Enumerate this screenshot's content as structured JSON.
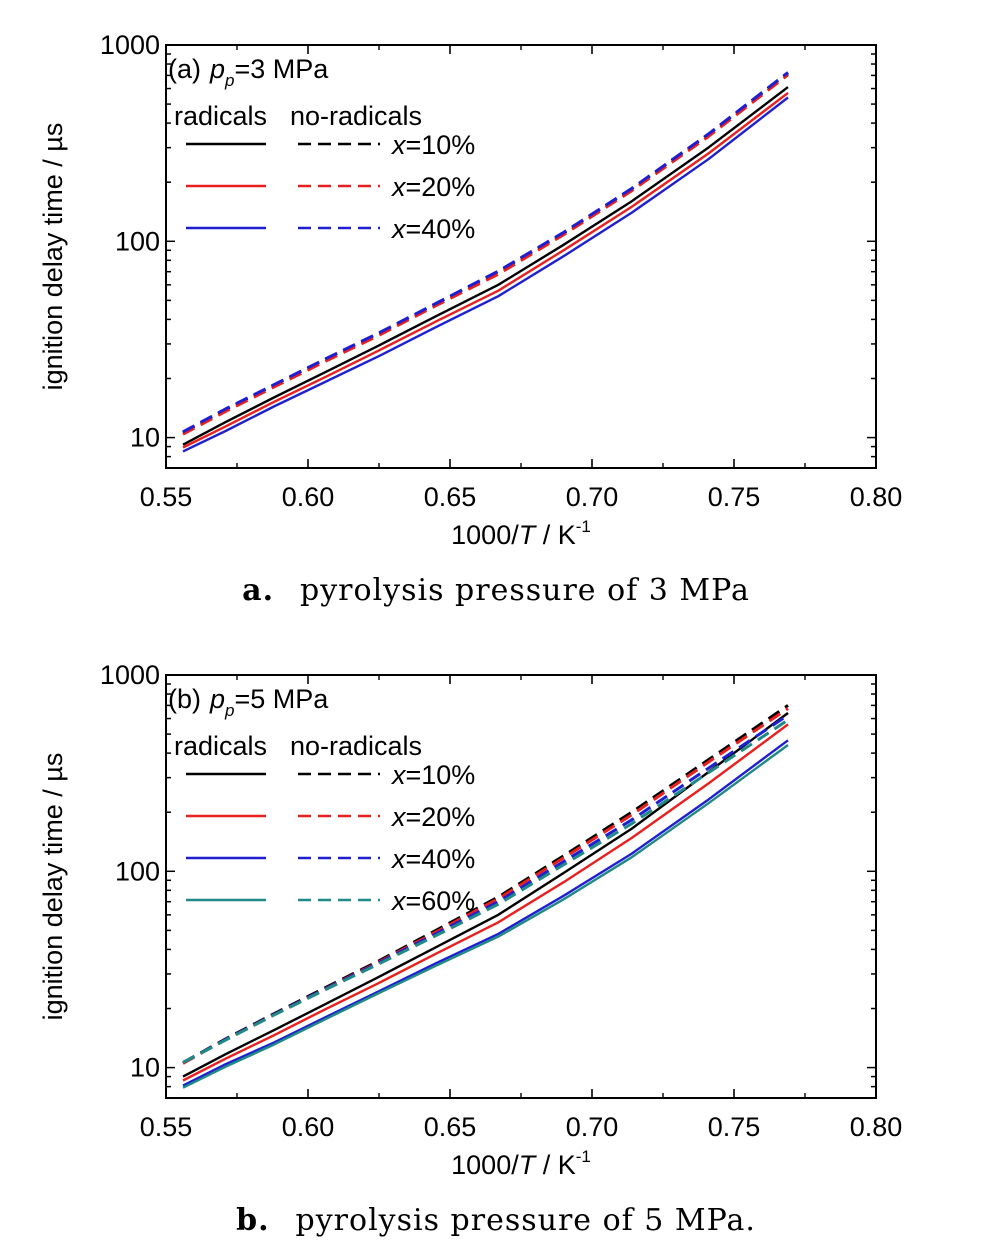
{
  "chart_data": [
    {
      "type": "line",
      "panel_label": "(a)",
      "condition": {
        "symbol": "p",
        "subscript": "p",
        "value_text": "=3 MPa"
      },
      "legend_headers": {
        "solid": "radicals",
        "dashed": "no-radicals"
      },
      "legend_placement": "top-left",
      "xlabel": "1000/T / K",
      "xlabel_parts": {
        "prefix": "1000/",
        "var": "T",
        "unit": " / K",
        "exp": "-1"
      },
      "ylabel": "ignition delay time / µs",
      "xlim": [
        0.55,
        0.8
      ],
      "ylim": [
        7,
        1000
      ],
      "yscale": "log",
      "xticks": [
        0.55,
        0.6,
        0.65,
        0.7,
        0.75,
        0.8
      ],
      "xtick_labels": [
        "0.55",
        "0.60",
        "0.65",
        "0.70",
        "0.75",
        "0.80"
      ],
      "yticks": [
        10,
        100,
        1000
      ],
      "ytick_labels": [
        "10",
        "100",
        "1000"
      ],
      "grid": false,
      "x": [
        0.556,
        0.571,
        0.588,
        0.606,
        0.625,
        0.645,
        0.667,
        0.69,
        0.714,
        0.741,
        0.769
      ],
      "series": [
        {
          "label": "x=10%",
          "style": "solid",
          "color": "#000000",
          "values": [
            9.2,
            12.0,
            16.0,
            21.5,
            29.5,
            41.5,
            60.0,
            96.0,
            160.0,
            300.0,
            610.0
          ]
        },
        {
          "label": "x=20%",
          "style": "solid",
          "color": "#e8201f",
          "values": [
            8.9,
            11.4,
            15.2,
            20.3,
            27.8,
            39.0,
            56.0,
            90.0,
            150.0,
            280.0,
            570.0
          ]
        },
        {
          "label": "x=40%",
          "style": "solid",
          "color": "#1f1fd0",
          "values": [
            8.5,
            10.8,
            14.4,
            19.2,
            26.0,
            36.5,
            52.5,
            84.0,
            140.0,
            262.0,
            540.0
          ]
        },
        {
          "label": "x=10%",
          "style": "dashed",
          "color": "#000000",
          "values": [
            10.6,
            13.9,
            18.5,
            25.0,
            34.0,
            48.0,
            70.0,
            110.0,
            185.0,
            350.0,
            720.0
          ]
        },
        {
          "label": "x=20%",
          "style": "dashed",
          "color": "#e8201f",
          "values": [
            10.4,
            13.6,
            18.1,
            24.4,
            33.2,
            47.0,
            68.0,
            108.0,
            181.0,
            342.0,
            705.0
          ]
        },
        {
          "label": "x=40%",
          "style": "dashed",
          "color": "#1f1fd0",
          "values": [
            10.7,
            14.0,
            18.6,
            25.1,
            34.2,
            48.2,
            70.5,
            111.0,
            186.0,
            352.0,
            725.0
          ]
        }
      ],
      "legend": [
        {
          "text_var": "x",
          "text": "=10%",
          "color": "#000000"
        },
        {
          "text_var": "x",
          "text": "=20%",
          "color": "#e8201f"
        },
        {
          "text_var": "x",
          "text": "=40%",
          "color": "#1f1fd0"
        }
      ],
      "caption": {
        "letter": "a.",
        "text": "pyrolysis pressure of 3 MPa"
      }
    },
    {
      "type": "line",
      "panel_label": "(b)",
      "condition": {
        "symbol": "p",
        "subscript": "p",
        "value_text": "=5 MPa"
      },
      "legend_headers": {
        "solid": "radicals",
        "dashed": "no-radicals"
      },
      "legend_placement": "top-left",
      "xlabel": "1000/T / K",
      "xlabel_parts": {
        "prefix": "1000/",
        "var": "T",
        "unit": " / K",
        "exp": "-1"
      },
      "ylabel": "ignition delay time / µs",
      "xlim": [
        0.55,
        0.8
      ],
      "ylim": [
        7,
        1000
      ],
      "yscale": "log",
      "xticks": [
        0.55,
        0.6,
        0.65,
        0.7,
        0.75,
        0.8
      ],
      "xtick_labels": [
        "0.55",
        "0.60",
        "0.65",
        "0.70",
        "0.75",
        "0.80"
      ],
      "yticks": [
        10,
        100,
        1000
      ],
      "ytick_labels": [
        "10",
        "100",
        "1000"
      ],
      "grid": false,
      "x": [
        0.556,
        0.571,
        0.588,
        0.606,
        0.625,
        0.645,
        0.667,
        0.69,
        0.714,
        0.741,
        0.769
      ],
      "series": [
        {
          "label": "x=10%",
          "style": "solid",
          "color": "#000000",
          "values": [
            9.0,
            11.7,
            15.5,
            21.0,
            29.0,
            41.0,
            60.0,
            98.0,
            165.0,
            320.0,
            640.0
          ]
        },
        {
          "label": "x=20%",
          "style": "solid",
          "color": "#e8201f",
          "values": [
            8.6,
            11.1,
            14.6,
            19.8,
            27.0,
            38.0,
            55.0,
            88.0,
            148.0,
            280.0,
            560.0
          ]
        },
        {
          "label": "x=40%",
          "style": "solid",
          "color": "#1f1fd0",
          "values": [
            8.1,
            10.4,
            13.4,
            18.0,
            24.5,
            34.0,
            48.0,
            75.0,
            123.0,
            232.0,
            465.0
          ]
        },
        {
          "label": "x=60%",
          "style": "solid",
          "color": "#1f8a86",
          "values": [
            7.9,
            10.1,
            13.1,
            17.6,
            24.0,
            33.0,
            46.5,
            72.0,
            118.0,
            222.0,
            440.0
          ]
        },
        {
          "label": "x=10%",
          "style": "dashed",
          "color": "#000000",
          "values": [
            10.6,
            14.0,
            18.8,
            25.5,
            35.0,
            50.0,
            74.0,
            120.0,
            200.0,
            370.0,
            700.0
          ]
        },
        {
          "label": "x=20%",
          "style": "dashed",
          "color": "#e8201f",
          "values": [
            10.5,
            13.9,
            18.6,
            25.2,
            34.5,
            49.0,
            72.5,
            117.0,
            194.0,
            360.0,
            675.0
          ]
        },
        {
          "label": "x=40%",
          "style": "dashed",
          "color": "#1f1fd0",
          "values": [
            10.6,
            13.9,
            18.6,
            25.1,
            34.2,
            48.0,
            70.0,
            112.0,
            183.0,
            335.0,
            625.0
          ]
        },
        {
          "label": "x=60%",
          "style": "dashed",
          "color": "#1f8a86",
          "values": [
            10.6,
            13.8,
            18.5,
            24.9,
            33.8,
            47.0,
            68.0,
            108.0,
            175.0,
            318.0,
            590.0
          ]
        }
      ],
      "legend": [
        {
          "text_var": "x",
          "text": "=10%",
          "color": "#000000"
        },
        {
          "text_var": "x",
          "text": "=20%",
          "color": "#e8201f"
        },
        {
          "text_var": "x",
          "text": "=40%",
          "color": "#1f1fd0"
        },
        {
          "text_var": "x",
          "text": "=60%",
          "color": "#1f8a86"
        }
      ],
      "caption": {
        "letter": "b.",
        "text": "pyrolysis pressure of 5 MPa."
      }
    }
  ]
}
